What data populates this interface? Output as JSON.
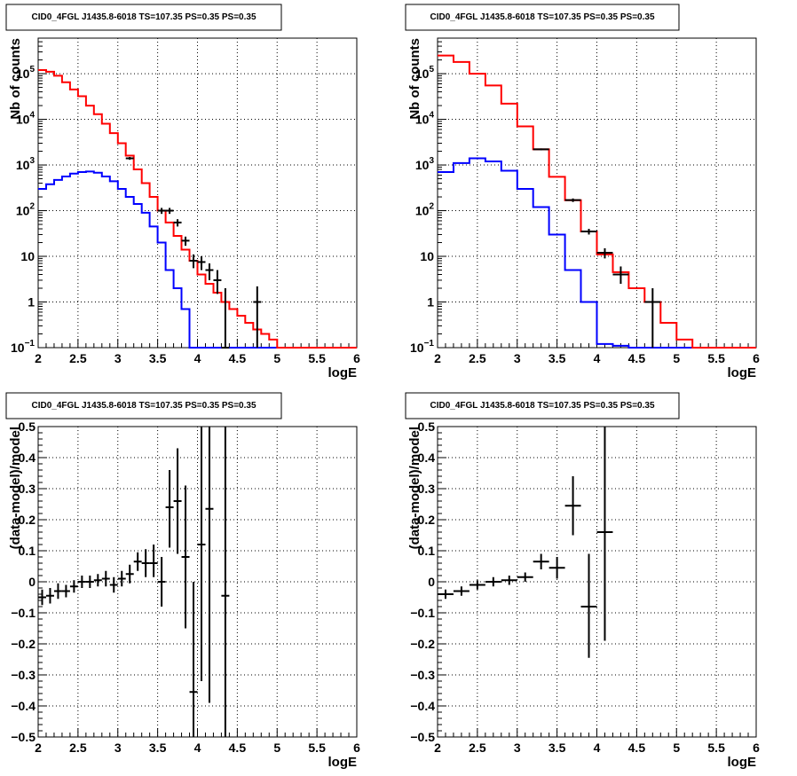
{
  "chart_data": [
    {
      "type": "histogram",
      "title": "CID0_4FGL J1435.8-6018 TS=107.35 PS=0.35 PS=0.35",
      "xlabel": "logE",
      "ylabel": "Nb of counts",
      "xlim": [
        2,
        6
      ],
      "ylim": [
        0.1,
        600000
      ],
      "yscale": "log",
      "grid": true,
      "xticks": [
        "2",
        "2.5",
        "3",
        "3.5",
        "4",
        "4.5",
        "5",
        "5.5",
        "6"
      ],
      "yticks": [
        {
          "v": 0.1,
          "label": "10",
          "sup": "−1"
        },
        {
          "v": 1,
          "label": "1",
          "sup": ""
        },
        {
          "v": 10,
          "label": "10",
          "sup": ""
        },
        {
          "v": 100,
          "label": "10",
          "sup": "2"
        },
        {
          "v": 1000,
          "label": "10",
          "sup": "3"
        },
        {
          "v": 10000,
          "label": "10",
          "sup": "4"
        },
        {
          "v": 100000,
          "label": "10",
          "sup": "5"
        }
      ],
      "series": [
        {
          "kind": "step",
          "color": "#0000ff",
          "edges": [
            2.0,
            2.1,
            2.2,
            2.3,
            2.4,
            2.5,
            2.6,
            2.7,
            2.8,
            2.9,
            3.0,
            3.1,
            3.2,
            3.3,
            3.4,
            3.5,
            3.6,
            3.7,
            3.8,
            3.9,
            4.0,
            4.1,
            4.2,
            4.3,
            4.4,
            4.5,
            4.6,
            4.7,
            4.8,
            4.9,
            5.0,
            5.1,
            5.2,
            5.3,
            5.4,
            5.5,
            5.6,
            5.7,
            5.8,
            5.9,
            6.0
          ],
          "values": [
            300,
            380,
            470,
            560,
            650,
            700,
            720,
            680,
            560,
            440,
            300,
            200,
            140,
            90,
            45,
            20,
            5,
            2,
            0.7,
            0.1,
            0.1,
            0.1,
            0.1,
            0.1,
            0.1,
            0.1,
            0.1,
            0.1,
            0.1,
            0.1,
            0.1,
            0.1,
            0.1,
            0.1,
            0.1,
            0.1,
            0.1,
            0.1,
            0.1,
            0.1
          ]
        },
        {
          "kind": "step",
          "color": "#ff0000",
          "edges": [
            2.0,
            2.1,
            2.2,
            2.3,
            2.4,
            2.5,
            2.6,
            2.7,
            2.8,
            2.9,
            3.0,
            3.1,
            3.2,
            3.3,
            3.4,
            3.5,
            3.6,
            3.7,
            3.8,
            3.9,
            4.0,
            4.1,
            4.2,
            4.3,
            4.4,
            4.5,
            4.6,
            4.7,
            4.8,
            4.9,
            5.0,
            5.1,
            5.2,
            5.3,
            5.4,
            5.5,
            5.6,
            5.7,
            5.8,
            5.9,
            6.0
          ],
          "values": [
            120000,
            110000,
            90000,
            65000,
            45000,
            32000,
            20000,
            13000,
            8000,
            5000,
            3000,
            1600,
            800,
            400,
            200,
            100,
            55,
            28,
            14,
            8,
            4,
            2.5,
            1.6,
            1,
            0.7,
            0.5,
            0.35,
            0.25,
            0.2,
            0.15,
            0.1,
            0.1,
            0.1,
            0.1,
            0.1,
            0.1,
            0.1,
            0.1,
            0.1,
            0.1
          ]
        },
        {
          "kind": "points",
          "color": "#000000",
          "x": [
            3.15,
            3.55,
            3.65,
            3.75,
            3.85,
            3.95,
            4.05,
            4.15,
            4.25,
            4.35,
            4.75
          ],
          "y": [
            1400,
            100,
            100,
            55,
            22,
            8,
            7.5,
            5,
            3,
            0.1,
            1
          ],
          "xerr": 0.05,
          "ylo": [
            1300,
            85,
            85,
            45,
            17,
            5.5,
            5,
            3,
            1.5,
            0.1,
            0.1
          ],
          "yhi": [
            1500,
            115,
            115,
            65,
            27,
            11,
            10,
            7,
            5,
            2,
            2.2
          ]
        }
      ]
    },
    {
      "type": "histogram",
      "title": "CID0_4FGL J1435.8-6018 TS=107.35 PS=0.35 PS=0.35",
      "xlabel": "logE",
      "ylabel": "Nb of counts",
      "xlim": [
        2,
        6
      ],
      "ylim": [
        0.1,
        600000
      ],
      "yscale": "log",
      "grid": true,
      "xticks": [
        "2",
        "2.5",
        "3",
        "3.5",
        "4",
        "4.5",
        "5",
        "5.5",
        "6"
      ],
      "yticks": [
        {
          "v": 0.1,
          "label": "10",
          "sup": "−1"
        },
        {
          "v": 1,
          "label": "1",
          "sup": ""
        },
        {
          "v": 10,
          "label": "10",
          "sup": ""
        },
        {
          "v": 100,
          "label": "10",
          "sup": "2"
        },
        {
          "v": 1000,
          "label": "10",
          "sup": "3"
        },
        {
          "v": 10000,
          "label": "10",
          "sup": "4"
        },
        {
          "v": 100000,
          "label": "10",
          "sup": "5"
        }
      ],
      "series": [
        {
          "kind": "step",
          "color": "#0000ff",
          "edges": [
            2.0,
            2.2,
            2.4,
            2.6,
            2.8,
            3.0,
            3.2,
            3.4,
            3.6,
            3.8,
            4.0,
            4.2,
            4.4,
            4.6,
            4.8,
            5.0,
            5.2,
            5.4,
            5.6,
            5.8,
            6.0
          ],
          "values": [
            700,
            1100,
            1400,
            1200,
            750,
            300,
            120,
            30,
            5,
            1,
            0.12,
            0.11,
            0.1,
            0.1,
            0.1,
            0.1,
            0.1,
            0.1,
            0.1,
            0.1
          ]
        },
        {
          "kind": "step",
          "color": "#ff0000",
          "edges": [
            2.0,
            2.2,
            2.4,
            2.6,
            2.8,
            3.0,
            3.2,
            3.4,
            3.6,
            3.8,
            4.0,
            4.2,
            4.4,
            4.6,
            4.8,
            5.0,
            5.2,
            5.4,
            5.6,
            5.8,
            6.0
          ],
          "values": [
            250000,
            180000,
            100000,
            55000,
            22000,
            7000,
            2200,
            550,
            170,
            35,
            11,
            4.5,
            2,
            1,
            0.35,
            0.15,
            0.1,
            0.1,
            0.1,
            0.1
          ]
        },
        {
          "kind": "points",
          "color": "#000000",
          "x": [
            3.3,
            3.7,
            3.9,
            4.1,
            4.3,
            4.7
          ],
          "y": [
            2200,
            170,
            35,
            12,
            4,
            1
          ],
          "xerr": 0.1,
          "ylo": [
            2100,
            155,
            30,
            9,
            2.5,
            0.1
          ],
          "yhi": [
            2300,
            185,
            40,
            15,
            6,
            2
          ]
        }
      ]
    },
    {
      "type": "scatter",
      "title": "CID0_4FGL J1435.8-6018 TS=107.35 PS=0.35 PS=0.35",
      "xlabel": "logE",
      "ylabel": "(data-model)/model",
      "xlim": [
        2,
        6
      ],
      "ylim": [
        -0.5,
        0.5
      ],
      "grid": true,
      "xticks": [
        "2",
        "2.5",
        "3",
        "3.5",
        "4",
        "4.5",
        "5",
        "5.5",
        "6"
      ],
      "yticks": [
        "−0.5",
        "−0.4",
        "−0.3",
        "−0.2",
        "−0.1",
        "0",
        "0.1",
        "0.2",
        "0.3",
        "0.4",
        "0.5"
      ],
      "series": [
        {
          "kind": "points",
          "color": "#000000",
          "x": [
            2.05,
            2.15,
            2.25,
            2.35,
            2.45,
            2.55,
            2.65,
            2.75,
            2.85,
            2.95,
            3.05,
            3.15,
            3.25,
            3.35,
            3.45,
            3.55,
            3.65,
            3.75,
            3.85,
            3.95,
            4.05,
            4.15,
            4.35
          ],
          "y": [
            -0.05,
            -0.045,
            -0.03,
            -0.03,
            -0.015,
            0.0,
            0.0,
            0.005,
            0.01,
            -0.01,
            0.01,
            0.025,
            0.065,
            0.06,
            0.06,
            0.0,
            0.24,
            0.26,
            0.08,
            -0.355,
            0.12,
            0.235,
            -0.045
          ],
          "xerr": 0.05,
          "ylo": [
            -0.075,
            -0.07,
            -0.055,
            -0.05,
            -0.035,
            -0.02,
            -0.02,
            -0.015,
            -0.015,
            -0.035,
            -0.015,
            -0.005,
            0.035,
            0.015,
            0.015,
            -0.08,
            0.11,
            0.09,
            -0.15,
            -0.5,
            -0.32,
            -0.39,
            -0.5
          ],
          "yhi": [
            -0.025,
            -0.02,
            -0.005,
            -0.01,
            0.005,
            0.02,
            0.02,
            0.025,
            0.035,
            0.015,
            0.035,
            0.055,
            0.095,
            0.105,
            0.12,
            0.08,
            0.36,
            0.43,
            0.31,
            0.0,
            0.5,
            0.5,
            0.5
          ]
        }
      ]
    },
    {
      "type": "scatter",
      "title": "CID0_4FGL J1435.8-6018 TS=107.35 PS=0.35 PS=0.35",
      "xlabel": "logE",
      "ylabel": "(data-model)/model",
      "xlim": [
        2,
        6
      ],
      "ylim": [
        -0.5,
        0.5
      ],
      "grid": true,
      "xticks": [
        "2",
        "2.5",
        "3",
        "3.5",
        "4",
        "4.5",
        "5",
        "5.5",
        "6"
      ],
      "yticks": [
        "−0.5",
        "−0.4",
        "−0.3",
        "−0.2",
        "−0.1",
        "0",
        "0.1",
        "0.2",
        "0.3",
        "0.4",
        "0.5"
      ],
      "series": [
        {
          "kind": "points",
          "color": "#000000",
          "x": [
            2.1,
            2.3,
            2.5,
            2.7,
            2.9,
            3.1,
            3.3,
            3.5,
            3.7,
            3.9,
            4.1
          ],
          "y": [
            -0.04,
            -0.03,
            -0.01,
            0.0,
            0.005,
            0.015,
            0.065,
            0.045,
            0.245,
            -0.08,
            0.16
          ],
          "xerr": 0.1,
          "ylo": [
            -0.055,
            -0.045,
            -0.025,
            -0.015,
            -0.01,
            0.0,
            0.04,
            0.01,
            0.15,
            -0.245,
            -0.19
          ],
          "yhi": [
            -0.025,
            -0.015,
            0.005,
            0.015,
            0.02,
            0.03,
            0.09,
            0.08,
            0.34,
            0.09,
            0.5
          ]
        }
      ]
    }
  ]
}
